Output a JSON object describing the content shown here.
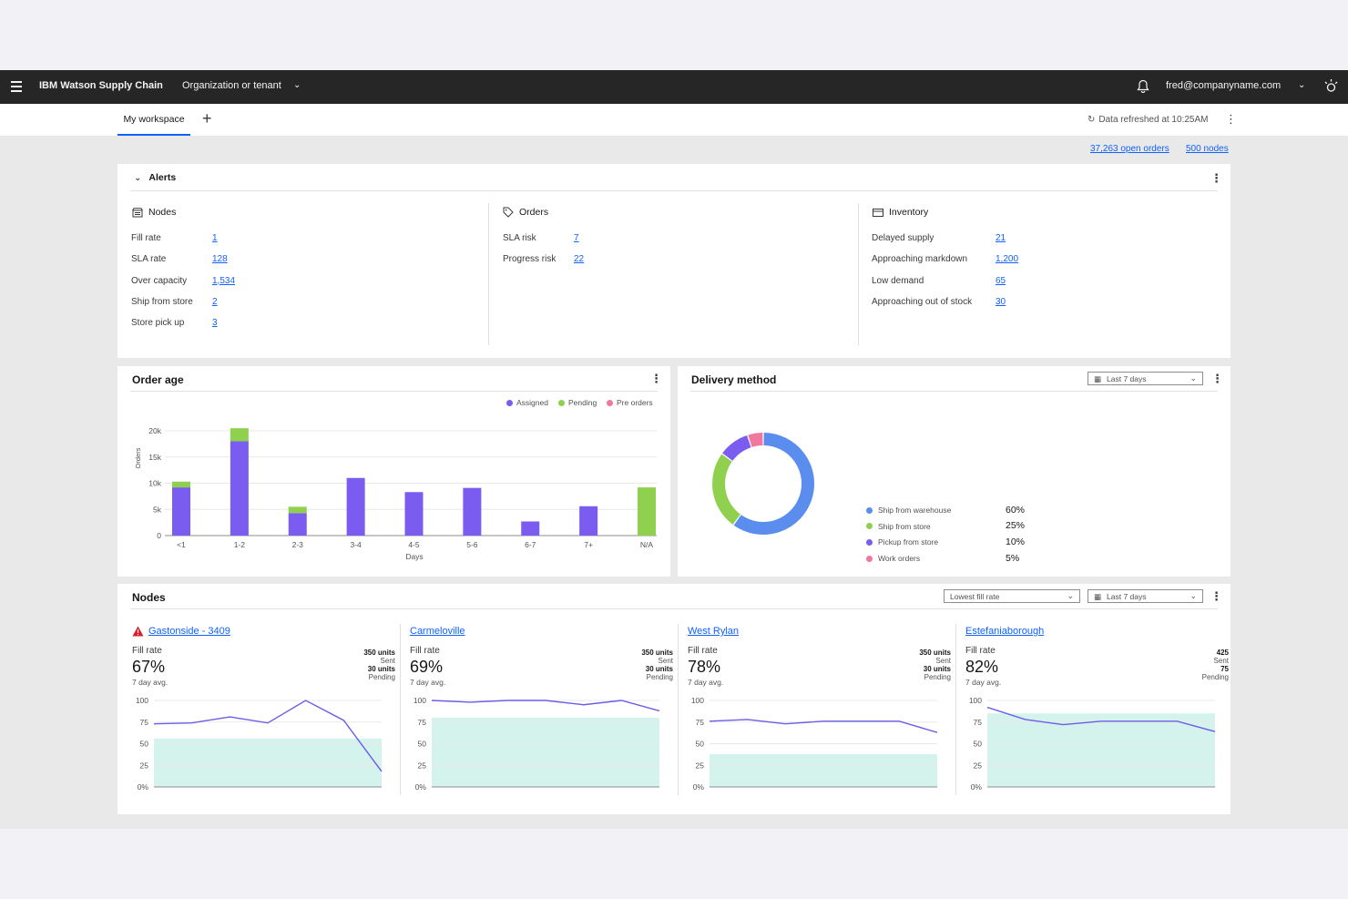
{
  "header": {
    "app_name": "IBM Watson Supply Chain",
    "tenant": "Organization or tenant",
    "user": "fred@companyname.com"
  },
  "tabs": {
    "active": "My workspace",
    "refresh": "Data refreshed at 10:25AM"
  },
  "summary": {
    "open_orders": "37,263 open orders",
    "nodes": "500 nodes"
  },
  "alerts": {
    "title": "Alerts",
    "nodes": {
      "title": "Nodes",
      "rows": [
        {
          "label": "Fill rate",
          "value": "1"
        },
        {
          "label": "SLA rate",
          "value": "128"
        },
        {
          "label": "Over capacity",
          "value": "1,534"
        },
        {
          "label": "Ship from store",
          "value": "2"
        },
        {
          "label": "Store pick up",
          "value": "3"
        }
      ]
    },
    "orders": {
      "title": "Orders",
      "rows": [
        {
          "label": "SLA risk",
          "value": "7"
        },
        {
          "label": "Progress risk",
          "value": "22"
        }
      ]
    },
    "inventory": {
      "title": "Inventory",
      "rows": [
        {
          "label": "Delayed supply",
          "value": "21"
        },
        {
          "label": "Approaching markdown",
          "value": "1,200"
        },
        {
          "label": "Low demand",
          "value": "65"
        },
        {
          "label": "Approaching out of stock",
          "value": "30"
        }
      ]
    }
  },
  "order_age": {
    "title": "Order age",
    "legend": [
      "Assigned",
      "Pending",
      "Pre orders"
    ],
    "colors": {
      "assigned": "#7b5cf0",
      "pending": "#8fd14f",
      "pre_orders": "#f0789e"
    }
  },
  "delivery": {
    "title": "Delivery method",
    "range": "Last 7 days",
    "items": [
      {
        "label": "Ship from warehouse",
        "pct": "60%",
        "color": "#5b8def"
      },
      {
        "label": "Ship from store",
        "pct": "25%",
        "color": "#8fd14f"
      },
      {
        "label": "Pickup from store",
        "pct": "10%",
        "color": "#7b5cf0"
      },
      {
        "label": "Work orders",
        "pct": "5%",
        "color": "#f0789e"
      }
    ]
  },
  "nodes_panel": {
    "title": "Nodes",
    "sort": "Lowest fill rate",
    "range": "Last 7 days",
    "fill_label": "Fill rate",
    "avg_label": "7 day avg.",
    "sent_label": "Sent",
    "pending_label": "Pending",
    "cards": [
      {
        "name": "Gastonside - 3409",
        "fill": "67%",
        "sent": "350 units",
        "pending": "30 units",
        "alert": true
      },
      {
        "name": "Carmeloville",
        "fill": "69%",
        "sent": "350 units",
        "pending": "30 units",
        "alert": false
      },
      {
        "name": "West Rylan",
        "fill": "78%",
        "sent": "350 units",
        "pending": "30 units",
        "alert": false
      },
      {
        "name": "Estefaniaborough",
        "fill": "82%",
        "sent": "425",
        "pending": "75",
        "alert": false
      }
    ]
  },
  "chart_data": [
    {
      "type": "bar",
      "stacked": true,
      "xlabel": "Days",
      "ylabel": "Orders",
      "ylim": [
        0,
        20000
      ],
      "yticks": [
        "0",
        "5k",
        "10k",
        "15k",
        "20k"
      ],
      "categories": [
        "<1",
        "1-2",
        "2-3",
        "3-4",
        "4-5",
        "5-6",
        "6-7",
        "7+",
        "N/A"
      ],
      "series": [
        {
          "name": "Assigned",
          "values": [
            9200,
            18000,
            4300,
            11000,
            8300,
            9100,
            2700,
            5600,
            0
          ]
        },
        {
          "name": "Pending",
          "values": [
            1100,
            2500,
            1200,
            0,
            0,
            0,
            0,
            0,
            9200
          ]
        },
        {
          "name": "Pre orders",
          "values": [
            0,
            0,
            0,
            0,
            0,
            0,
            0,
            0,
            0
          ]
        }
      ]
    },
    {
      "type": "pie",
      "donut": true,
      "categories": [
        "Ship from warehouse",
        "Ship from store",
        "Pickup from store",
        "Work orders"
      ],
      "values": [
        60,
        25,
        10,
        5
      ]
    },
    {
      "type": "line",
      "node": "Gastonside - 3409",
      "yticks": [
        "100",
        "75",
        "50",
        "25",
        "0%"
      ],
      "ylim": [
        0,
        100
      ],
      "target": 56,
      "values": [
        73,
        74,
        81,
        74,
        100,
        77,
        18
      ]
    },
    {
      "type": "line",
      "node": "Carmeloville",
      "yticks": [
        "100",
        "75",
        "50",
        "25",
        "0%"
      ],
      "ylim": [
        0,
        100
      ],
      "target": 80,
      "values": [
        100,
        98,
        100,
        100,
        95,
        100,
        88
      ]
    },
    {
      "type": "line",
      "node": "West Rylan",
      "yticks": [
        "100",
        "75",
        "50",
        "25",
        "0%"
      ],
      "ylim": [
        0,
        100
      ],
      "target": 38,
      "values": [
        76,
        78,
        73,
        76,
        76,
        76,
        63
      ]
    },
    {
      "type": "line",
      "node": "Estefaniaborough",
      "yticks": [
        "100",
        "75",
        "50",
        "25",
        "0%"
      ],
      "ylim": [
        0,
        100
      ],
      "target": 85,
      "values": [
        92,
        78,
        72,
        76,
        76,
        76,
        64
      ]
    }
  ]
}
